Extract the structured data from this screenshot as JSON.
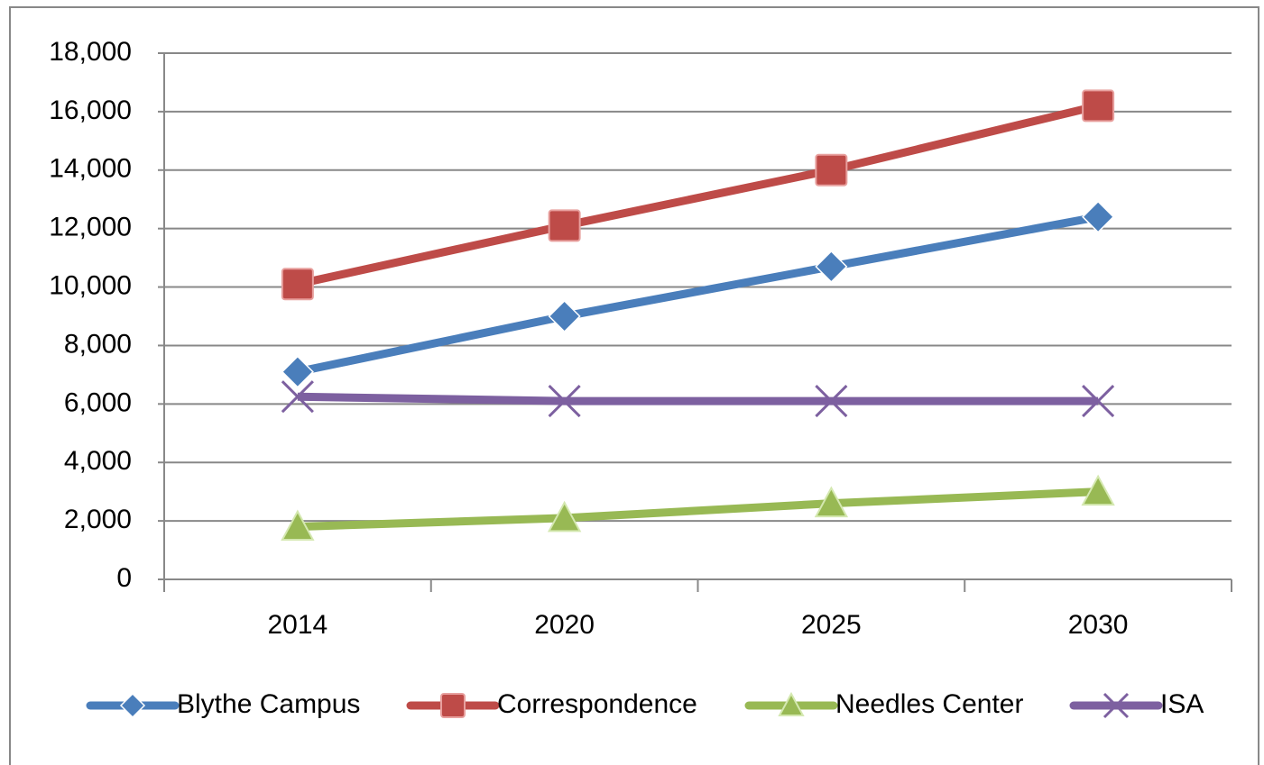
{
  "chart_data": {
    "type": "line",
    "categories": [
      "2014",
      "2020",
      "2025",
      "2030"
    ],
    "series": [
      {
        "name": "Blythe Campus",
        "color": "#4a7ebb",
        "marker": "diamond",
        "values": [
          7100,
          9000,
          10700,
          12400
        ]
      },
      {
        "name": "Correspondence",
        "color": "#be4b48",
        "marker": "square",
        "values": [
          10100,
          12100,
          14000,
          16200
        ]
      },
      {
        "name": "Needles Center",
        "color": "#98b954",
        "marker": "triangle",
        "values": [
          1800,
          2100,
          2600,
          3000
        ]
      },
      {
        "name": "ISA",
        "color": "#7d60a0",
        "marker": "x",
        "values": [
          6250,
          6100,
          6100,
          6100
        ]
      }
    ],
    "ylim": [
      0,
      18000
    ],
    "yticks": [
      0,
      {
        "value": 2000,
        "label": "2,000"
      },
      {
        "value": 4000,
        "label": "4,000"
      },
      {
        "value": 6000,
        "label": "6,000"
      },
      {
        "value": 8000,
        "label": "8,000"
      },
      {
        "value": 10000,
        "label": "10,000"
      },
      {
        "value": 12000,
        "label": "12,000"
      },
      {
        "value": 14000,
        "label": "14,000"
      },
      {
        "value": 16000,
        "label": "16,000"
      },
      {
        "value": 18000,
        "label": "18,000"
      }
    ],
    "grid": true,
    "legend": "bottom"
  }
}
